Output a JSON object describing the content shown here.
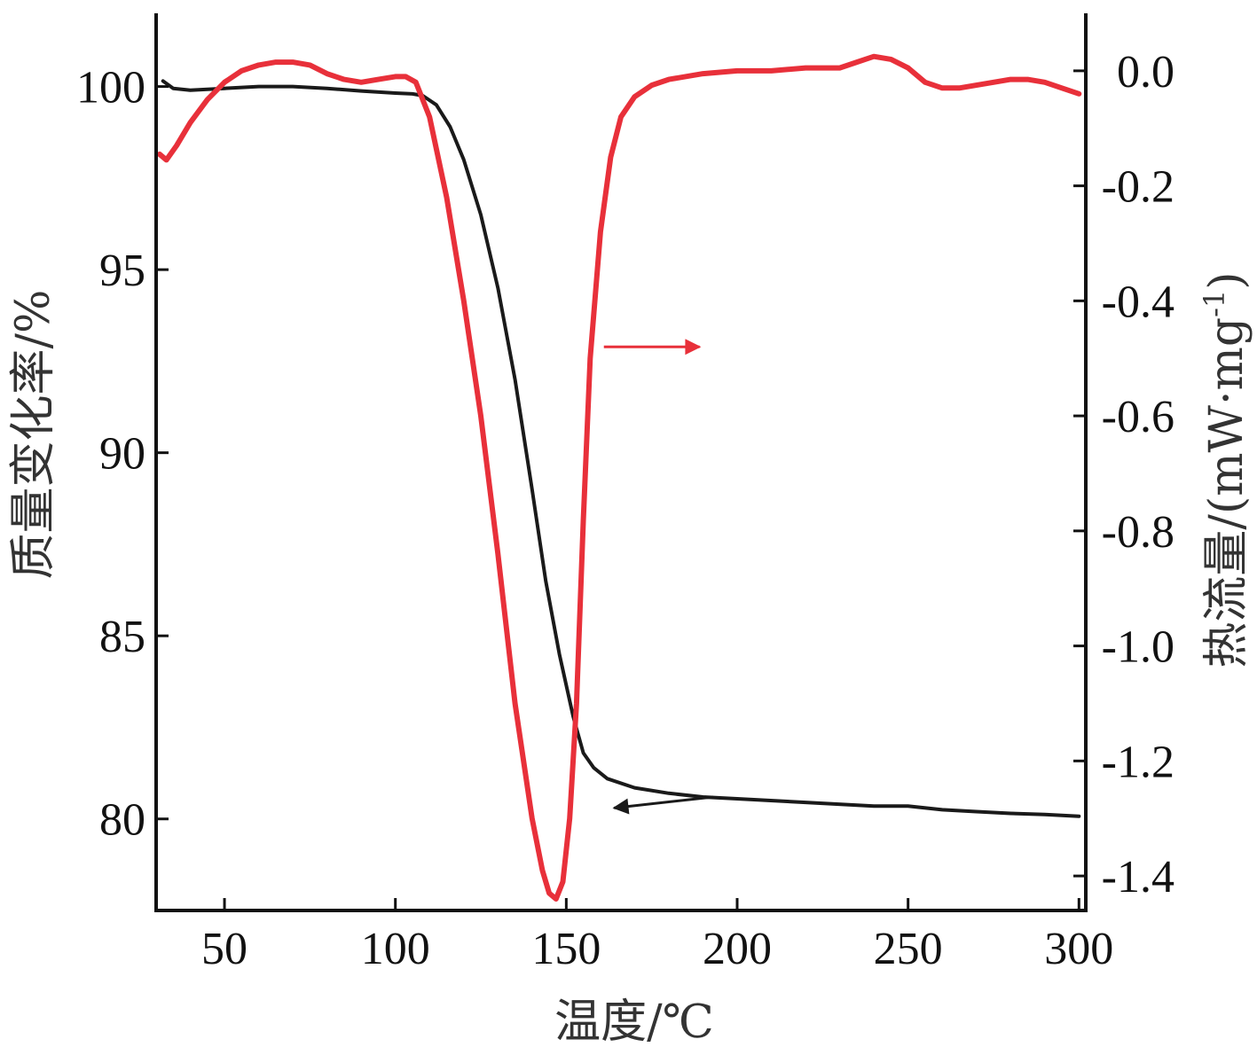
{
  "chart_data": {
    "type": "line",
    "title": "",
    "xlabel": "温度/℃",
    "ylabel_left": "质量变化率/%",
    "ylabel_right_main": "热流量/(mW·mg",
    "ylabel_right_sup": "-1",
    "ylabel_right_close": ")",
    "xlim": [
      30,
      302
    ],
    "ylim_left": [
      77.5,
      102
    ],
    "ylim_right": [
      -1.46,
      0.1
    ],
    "grid": false,
    "legend": "none",
    "x_ticks": [
      50,
      100,
      150,
      200,
      250,
      300
    ],
    "x_tick_labels": [
      "50",
      "100",
      "150",
      "200",
      "250",
      "300"
    ],
    "y_left_ticks": [
      80,
      85,
      90,
      95,
      100
    ],
    "y_left_tick_labels": [
      "80",
      "85",
      "90",
      "95",
      "100"
    ],
    "y_right_ticks": [
      0.0,
      -0.2,
      -0.4,
      -0.6,
      -0.8,
      -1.0,
      -1.2,
      -1.4
    ],
    "y_right_tick_labels": [
      "0.0",
      "-0.2",
      "-0.4",
      "-0.6",
      "-0.8",
      "-1.0",
      "-1.2",
      "-1.4"
    ],
    "series": [
      {
        "axis": "left",
        "color": "#1a1a1a",
        "points": [
          [
            32,
            100.15
          ],
          [
            35,
            99.95
          ],
          [
            40,
            99.9
          ],
          [
            50,
            99.95
          ],
          [
            60,
            100.0
          ],
          [
            70,
            100.0
          ],
          [
            80,
            99.95
          ],
          [
            90,
            99.88
          ],
          [
            100,
            99.82
          ],
          [
            105,
            99.8
          ],
          [
            108,
            99.75
          ],
          [
            112,
            99.5
          ],
          [
            116,
            98.9
          ],
          [
            120,
            98.0
          ],
          [
            125,
            96.5
          ],
          [
            130,
            94.5
          ],
          [
            135,
            92.0
          ],
          [
            140,
            89.0
          ],
          [
            144,
            86.5
          ],
          [
            148,
            84.5
          ],
          [
            152,
            82.8
          ],
          [
            155,
            81.8
          ],
          [
            158,
            81.4
          ],
          [
            162,
            81.1
          ],
          [
            170,
            80.85
          ],
          [
            180,
            80.7
          ],
          [
            190,
            80.6
          ],
          [
            200,
            80.55
          ],
          [
            220,
            80.45
          ],
          [
            240,
            80.35
          ],
          [
            250,
            80.35
          ],
          [
            260,
            80.25
          ],
          [
            270,
            80.2
          ],
          [
            280,
            80.15
          ],
          [
            290,
            80.12
          ],
          [
            300,
            80.07
          ]
        ]
      },
      {
        "axis": "right",
        "color": "#e8303a",
        "points": [
          [
            31,
            -0.145
          ],
          [
            33,
            -0.155
          ],
          [
            36,
            -0.13
          ],
          [
            40,
            -0.09
          ],
          [
            45,
            -0.05
          ],
          [
            50,
            -0.02
          ],
          [
            55,
            0.0
          ],
          [
            60,
            0.01
          ],
          [
            65,
            0.015
          ],
          [
            70,
            0.015
          ],
          [
            75,
            0.01
          ],
          [
            80,
            -0.005
          ],
          [
            85,
            -0.015
          ],
          [
            90,
            -0.02
          ],
          [
            95,
            -0.015
          ],
          [
            100,
            -0.01
          ],
          [
            103,
            -0.01
          ],
          [
            106,
            -0.02
          ],
          [
            110,
            -0.08
          ],
          [
            115,
            -0.22
          ],
          [
            120,
            -0.4
          ],
          [
            125,
            -0.6
          ],
          [
            130,
            -0.84
          ],
          [
            135,
            -1.1
          ],
          [
            140,
            -1.3
          ],
          [
            143,
            -1.39
          ],
          [
            145,
            -1.43
          ],
          [
            147,
            -1.44
          ],
          [
            149,
            -1.41
          ],
          [
            151,
            -1.3
          ],
          [
            153,
            -1.1
          ],
          [
            155,
            -0.78
          ],
          [
            157,
            -0.5
          ],
          [
            160,
            -0.28
          ],
          [
            163,
            -0.15
          ],
          [
            166,
            -0.08
          ],
          [
            170,
            -0.045
          ],
          [
            175,
            -0.025
          ],
          [
            180,
            -0.015
          ],
          [
            190,
            -0.005
          ],
          [
            200,
            0.0
          ],
          [
            210,
            0.0
          ],
          [
            220,
            0.005
          ],
          [
            230,
            0.005
          ],
          [
            235,
            0.015
          ],
          [
            240,
            0.025
          ],
          [
            245,
            0.02
          ],
          [
            250,
            0.005
          ],
          [
            255,
            -0.02
          ],
          [
            260,
            -0.03
          ],
          [
            265,
            -0.03
          ],
          [
            270,
            -0.025
          ],
          [
            275,
            -0.02
          ],
          [
            280,
            -0.015
          ],
          [
            285,
            -0.015
          ],
          [
            290,
            -0.02
          ],
          [
            295,
            -0.03
          ],
          [
            300,
            -0.04
          ]
        ]
      }
    ],
    "annotations": [
      {
        "type": "arrow",
        "color": "#e8303a",
        "from": [
          161,
          -0.48
        ],
        "to": [
          189,
          -0.48
        ]
      },
      {
        "type": "arrow",
        "color": "#1a1a1a",
        "from": [
          193,
          80.6
        ],
        "to": [
          164,
          80.3
        ]
      }
    ]
  }
}
